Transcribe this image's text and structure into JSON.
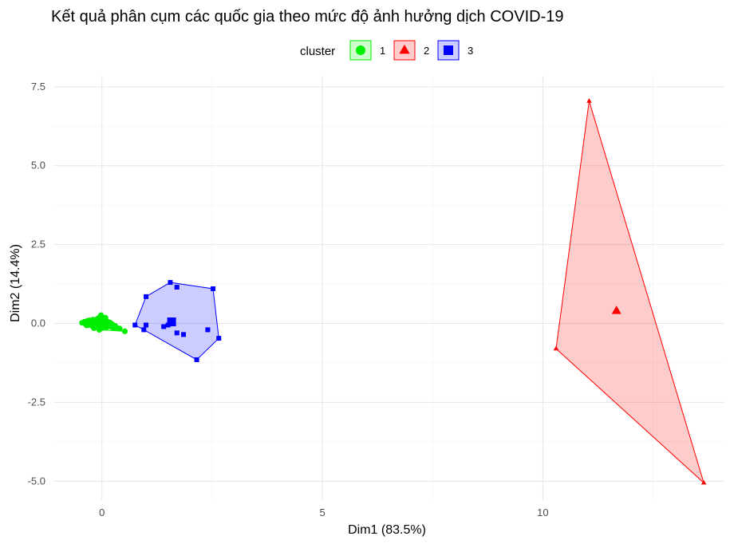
{
  "chart_data": {
    "type": "scatter",
    "title": "Kết quả phân cụm các quốc gia theo mức độ ảnh hưởng dịch COVID-19",
    "xlabel": "Dim1 (83.5%)",
    "ylabel": "Dim2 (14.4%)",
    "xlim": [
      -1.1,
      14.1
    ],
    "ylim": [
      -5.6,
      7.85
    ],
    "x_ticks": [
      0,
      5,
      10
    ],
    "y_ticks": [
      7.5,
      5.0,
      2.5,
      0.0,
      -2.5,
      -5.0
    ],
    "x_tick_labels": [
      "0",
      "5",
      "10"
    ],
    "y_tick_labels": [
      "7.5",
      "5.0",
      "2.5",
      "0.0",
      "-2.5",
      "-5.0"
    ],
    "grid": true,
    "legend": {
      "title": "cluster",
      "position": "top"
    },
    "series": [
      {
        "name": "1",
        "shape": "circle",
        "color": "#00ee00",
        "fill": "#00ff00",
        "points": [
          [
            -0.45,
            0.02
          ],
          [
            -0.4,
            0.05
          ],
          [
            -0.37,
            -0.02
          ],
          [
            -0.33,
            0.08
          ],
          [
            -0.3,
            -0.05
          ],
          [
            -0.28,
            0.1
          ],
          [
            -0.25,
            0.0
          ],
          [
            -0.22,
            -0.08
          ],
          [
            -0.2,
            0.12
          ],
          [
            -0.18,
            0.04
          ],
          [
            -0.15,
            -0.12
          ],
          [
            -0.13,
            0.07
          ],
          [
            -0.1,
            0.15
          ],
          [
            -0.08,
            -0.03
          ],
          [
            -0.05,
            0.2
          ],
          [
            -0.02,
            0.26
          ],
          [
            0.0,
            0.05
          ],
          [
            0.0,
            -0.15
          ],
          [
            0.03,
            0.12
          ],
          [
            0.05,
            -0.06
          ],
          [
            0.07,
            0.0
          ],
          [
            0.1,
            -0.12
          ],
          [
            0.12,
            0.06
          ],
          [
            0.15,
            -0.08
          ],
          [
            0.18,
            0.03
          ],
          [
            0.2,
            -0.1
          ],
          [
            0.23,
            -0.02
          ],
          [
            0.26,
            -0.14
          ],
          [
            0.3,
            -0.08
          ],
          [
            0.35,
            -0.15
          ],
          [
            0.4,
            -0.16
          ],
          [
            0.52,
            -0.25
          ],
          [
            -0.35,
            -0.06
          ],
          [
            -0.18,
            -0.15
          ],
          [
            0.08,
            0.18
          ],
          [
            -0.06,
            -0.2
          ]
        ],
        "centroid": [
          0.0,
          -0.02
        ],
        "hull": [
          [
            -0.45,
            0.02
          ],
          [
            -0.3,
            0.1
          ],
          [
            -0.02,
            0.26
          ],
          [
            0.52,
            -0.25
          ],
          [
            -0.06,
            -0.2
          ],
          [
            -0.37,
            -0.02
          ]
        ]
      },
      {
        "name": "2",
        "shape": "triangle",
        "color": "#ff0000",
        "fill": "#ff0000",
        "points": [
          [
            11.05,
            7.05
          ],
          [
            10.3,
            -0.8
          ],
          [
            13.65,
            -5.05
          ]
        ],
        "centroid": [
          11.67,
          0.4
        ],
        "hull": [
          [
            11.05,
            7.05
          ],
          [
            13.65,
            -5.05
          ],
          [
            10.3,
            -0.8
          ]
        ]
      },
      {
        "name": "3",
        "shape": "square",
        "color": "#0000ff",
        "fill": "#0000ff",
        "points": [
          [
            1.55,
            1.3
          ],
          [
            1.7,
            1.15
          ],
          [
            2.52,
            1.1
          ],
          [
            1.0,
            0.85
          ],
          [
            0.75,
            -0.05
          ],
          [
            1.0,
            -0.05
          ],
          [
            0.95,
            -0.2
          ],
          [
            1.4,
            -0.1
          ],
          [
            1.7,
            -0.3
          ],
          [
            1.85,
            -0.35
          ],
          [
            2.4,
            -0.2
          ],
          [
            2.65,
            -0.47
          ],
          [
            2.15,
            -1.15
          ],
          [
            1.5,
            -0.05
          ]
        ],
        "centroid": [
          1.58,
          0.05
        ],
        "hull": [
          [
            0.75,
            -0.05
          ],
          [
            1.0,
            0.85
          ],
          [
            1.55,
            1.3
          ],
          [
            2.52,
            1.1
          ],
          [
            2.65,
            -0.47
          ],
          [
            2.15,
            -1.15
          ],
          [
            0.95,
            -0.2
          ]
        ]
      }
    ]
  }
}
